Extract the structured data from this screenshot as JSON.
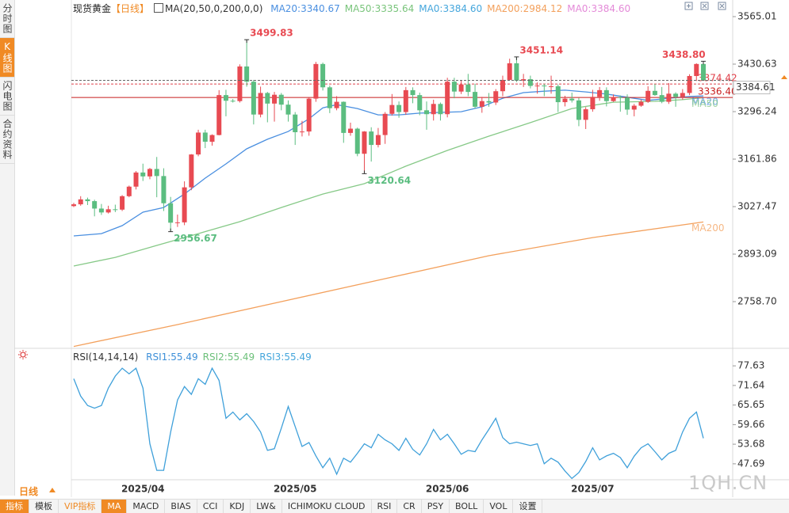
{
  "ui": {
    "sidebar": [
      "分时图",
      "K线图",
      "闪电图",
      "合约资料"
    ],
    "period": "日线",
    "watermark": "1QH.CN",
    "toolbar": [
      "指标",
      "模板",
      "VIP指标",
      "MA",
      "MACD",
      "BIAS",
      "CCI",
      "KDJ",
      "LW&",
      "ICHIMOKU CLOUD",
      "RSI",
      "CR",
      "PSY",
      "BOLL",
      "VOL",
      "设置"
    ]
  },
  "chart_data": [
    {
      "type": "candlestick",
      "title": "现货黄金",
      "period_label": "【日线】",
      "indicator": "MA(20,50,0,200,0,0)",
      "legend": [
        {
          "text": "MA20:3340.67",
          "color": "#4a8fe0"
        },
        {
          "text": "MA50:3335.64",
          "color": "#79c47b"
        },
        {
          "text": "MA0:3384.60",
          "color": "#45a6dc"
        },
        {
          "text": "MA200:2984.12",
          "color": "#f3a05c"
        },
        {
          "text": "MA0:3384.60",
          "color": "#e48ad8"
        }
      ],
      "up_color": "#e84a52",
      "down_color": "#5bbd80",
      "categories": [
        null,
        null,
        null,
        null,
        null,
        null,
        null,
        null,
        null,
        null,
        "2025/04",
        null,
        null,
        null,
        null,
        null,
        null,
        null,
        null,
        null,
        null,
        null,
        null,
        null,
        null,
        null,
        null,
        null,
        null,
        null,
        null,
        null,
        "2025/05",
        null,
        null,
        null,
        null,
        null,
        null,
        null,
        null,
        null,
        null,
        null,
        null,
        null,
        null,
        null,
        null,
        null,
        null,
        null,
        null,
        null,
        "2025/06",
        null,
        null,
        null,
        null,
        null,
        null,
        null,
        null,
        null,
        null,
        null,
        null,
        null,
        null,
        null,
        null,
        null,
        null,
        null,
        null,
        "2025/07",
        null,
        null,
        null,
        null,
        null,
        null,
        null,
        null,
        null,
        null,
        null,
        null,
        null,
        null,
        null,
        null
      ],
      "candles": [
        [
          3029,
          3038,
          3026,
          3034
        ],
        [
          3034,
          3057,
          3030,
          3048
        ],
        [
          3048,
          3053,
          3032,
          3043
        ],
        [
          3043,
          3047,
          3000,
          3022
        ],
        [
          3022,
          3035,
          3004,
          3011
        ],
        [
          3011,
          3030,
          3008,
          3020
        ],
        [
          3020,
          3033,
          3012,
          3019
        ],
        [
          3019,
          3060,
          3015,
          3057
        ],
        [
          3057,
          3087,
          3054,
          3084
        ],
        [
          3084,
          3128,
          3076,
          3124
        ],
        [
          3124,
          3149,
          3100,
          3113
        ],
        [
          3113,
          3137,
          3105,
          3134
        ],
        [
          3134,
          3168,
          3054,
          3114
        ],
        [
          3114,
          3136,
          3015,
          3037
        ],
        [
          3037,
          3055,
          2956.67,
          2982
        ],
        [
          2982,
          3005,
          2970,
          2983
        ],
        [
          2983,
          3099,
          2975,
          3082
        ],
        [
          3082,
          3176,
          3074,
          3175
        ],
        [
          3175,
          3245,
          3170,
          3237
        ],
        [
          3237,
          3245,
          3193,
          3211
        ],
        [
          3211,
          3232,
          3200,
          3230
        ],
        [
          3230,
          3357,
          3229,
          3343
        ],
        [
          3343,
          3358,
          3283,
          3327
        ],
        [
          3327,
          3332,
          3322,
          3326
        ],
        [
          3326,
          3430,
          3322,
          3424
        ],
        [
          3424,
          3499.83,
          3367,
          3381
        ],
        [
          3381,
          3386,
          3260,
          3288
        ],
        [
          3288,
          3367,
          3280,
          3349
        ],
        [
          3349,
          3352,
          3266,
          3319
        ],
        [
          3319,
          3352,
          3268,
          3344
        ],
        [
          3344,
          3349,
          3300,
          3316
        ],
        [
          3316,
          3328,
          3268,
          3288
        ],
        [
          3288,
          3295,
          3202,
          3238
        ],
        [
          3238,
          3270,
          3226,
          3240
        ],
        [
          3240,
          3336,
          3228,
          3333
        ],
        [
          3333,
          3437,
          3324,
          3431
        ],
        [
          3431,
          3435,
          3356,
          3365
        ],
        [
          3365,
          3370,
          3292,
          3306
        ],
        [
          3306,
          3340,
          3300,
          3324
        ],
        [
          3324,
          3325,
          3208,
          3236
        ],
        [
          3236,
          3265,
          3228,
          3248
        ],
        [
          3248,
          3251,
          3170,
          3177
        ],
        [
          3177,
          3241,
          3120.64,
          3240
        ],
        [
          3240,
          3252,
          3155,
          3202
        ],
        [
          3202,
          3250,
          3195,
          3230
        ],
        [
          3230,
          3295,
          3205,
          3290
        ],
        [
          3290,
          3346,
          3285,
          3315
        ],
        [
          3315,
          3325,
          3279,
          3295
        ],
        [
          3295,
          3366,
          3287,
          3357
        ],
        [
          3357,
          3365,
          3320,
          3343
        ],
        [
          3343,
          3350,
          3286,
          3300
        ],
        [
          3300,
          3325,
          3245,
          3289
        ],
        [
          3289,
          3330,
          3271,
          3318
        ],
        [
          3318,
          3322,
          3271,
          3289
        ],
        [
          3289,
          3392,
          3280,
          3381
        ],
        [
          3381,
          3392,
          3334,
          3353
        ],
        [
          3353,
          3385,
          3346,
          3373
        ],
        [
          3373,
          3403,
          3340,
          3352
        ],
        [
          3352,
          3375,
          3305,
          3310
        ],
        [
          3310,
          3338,
          3293,
          3326
        ],
        [
          3326,
          3349,
          3310,
          3322
        ],
        [
          3322,
          3360,
          3315,
          3354
        ],
        [
          3354,
          3398,
          3340,
          3386
        ],
        [
          3386,
          3446,
          3385,
          3433
        ],
        [
          3433,
          3451.14,
          3380,
          3384
        ],
        [
          3384,
          3403,
          3366,
          3388
        ],
        [
          3388,
          3398,
          3362,
          3369
        ],
        [
          3369,
          3379,
          3347,
          3370
        ],
        [
          3370,
          3375,
          3340,
          3368
        ],
        [
          3368,
          3398,
          3347,
          3368
        ],
        [
          3368,
          3373,
          3295,
          3323
        ],
        [
          3323,
          3341,
          3311,
          3333
        ],
        [
          3333,
          3350,
          3322,
          3328
        ],
        [
          3328,
          3335,
          3255,
          3273
        ],
        [
          3273,
          3309,
          3247,
          3303
        ],
        [
          3303,
          3358,
          3296,
          3338
        ],
        [
          3338,
          3366,
          3327,
          3357
        ],
        [
          3357,
          3365,
          3311,
          3326
        ],
        [
          3326,
          3345,
          3324,
          3337
        ],
        [
          3337,
          3342,
          3296,
          3336
        ],
        [
          3336,
          3345,
          3287,
          3302
        ],
        [
          3302,
          3318,
          3283,
          3313
        ],
        [
          3313,
          3330,
          3310,
          3324
        ],
        [
          3324,
          3368,
          3321,
          3355
        ],
        [
          3355,
          3374,
          3341,
          3343
        ],
        [
          3343,
          3366,
          3320,
          3324
        ],
        [
          3324,
          3377,
          3318,
          3347
        ],
        [
          3347,
          3351,
          3310,
          3338
        ],
        [
          3338,
          3360,
          3330,
          3349
        ],
        [
          3349,
          3402,
          3343,
          3397
        ],
        [
          3397,
          3433,
          3383,
          3431
        ],
        [
          3431,
          3438.8,
          3383,
          3384.61
        ]
      ],
      "annotations": [
        {
          "index": 25,
          "field": "high",
          "label": "3499.83"
        },
        {
          "index": 14,
          "field": "low",
          "label": "2956.67"
        },
        {
          "index": 42,
          "field": "low",
          "label": "3120.64"
        },
        {
          "index": 64,
          "field": "high",
          "label": "3451.14"
        },
        {
          "index": 91,
          "field": "high",
          "label": "3438.80"
        }
      ],
      "series": [
        {
          "name": "MA20",
          "color": "#4a8fe0",
          "x": [
            0,
            4,
            7,
            10,
            13,
            16,
            19,
            22,
            25,
            28,
            31,
            34,
            36,
            38,
            41,
            44,
            47,
            50,
            53,
            56,
            59,
            62,
            65,
            68,
            71,
            74,
            77,
            80,
            83,
            86,
            89,
            91
          ],
          "values": [
            2944.6,
            2951,
            2973.7,
            3011.8,
            3025,
            3063,
            3108,
            3148.4,
            3191,
            3218,
            3240,
            3276,
            3307,
            3316,
            3305,
            3287,
            3287,
            3292,
            3294,
            3296,
            3310,
            3334,
            3350,
            3354,
            3357,
            3352,
            3346,
            3337,
            3328,
            3334,
            3339,
            3340.67
          ]
        },
        {
          "name": "MA50",
          "color": "#86c987",
          "x": [
            0,
            6,
            12,
            18,
            24,
            30,
            36,
            42,
            48,
            54,
            60,
            66,
            72,
            78,
            84,
            88,
            91
          ],
          "values": [
            2859.5,
            2884,
            2917.7,
            2951,
            2985,
            3025,
            3063,
            3092.4,
            3142,
            3186.5,
            3226.8,
            3265,
            3305,
            3323,
            3325.4,
            3330,
            3335.64
          ]
        },
        {
          "name": "MA200",
          "color": "#f3a05c",
          "x": [
            0,
            15,
            30,
            45,
            60,
            75,
            91
          ],
          "values": [
            2632,
            2693.7,
            2758.7,
            2823.6,
            2888.6,
            2940,
            2984.12
          ]
        }
      ],
      "hlines": [
        {
          "value": 3374.42,
          "color": "#e0404a",
          "dash": true
        },
        {
          "value": 3336.4,
          "label": "3336.40",
          "color": "#c81e1e",
          "dash": false
        }
      ],
      "ylim": [
        2626.55,
        3580.69
      ],
      "yticks": [
        3565.01,
        3430.63,
        3296.24,
        3161.86,
        3027.47,
        2893.09,
        {
          "value": 2758.7,
          "label": "2758.70"
        }
      ]
    },
    {
      "type": "line",
      "title": "RSI(14,14,14)",
      "legend": [
        {
          "text": "RSI1:55.49",
          "color": "#3d8fd8"
        },
        {
          "text": "RSI2:55.49",
          "color": "#6cc07a"
        },
        {
          "text": "RSI3:55.49",
          "color": "#45a6dc"
        }
      ],
      "series": [
        {
          "color": "#3fa0da",
          "values": [
            73.7,
            68.4,
            65.5,
            64.7,
            65.5,
            70.8,
            74.5,
            76.9,
            75.2,
            76.9,
            70.8,
            53.8,
            45.7,
            45.7,
            57.4,
            67.2,
            71.3,
            68.9,
            73.7,
            72.0,
            76.9,
            73.2,
            61.6,
            63.5,
            61.1,
            63.0,
            60.6,
            57.4,
            51.8,
            52.3,
            58.6,
            65.2,
            59.1,
            53.0,
            54.2,
            50.1,
            46.5,
            49.4,
            44.5,
            49.4,
            48.2,
            50.9,
            53.8,
            52.6,
            56.7,
            55.0,
            53.8,
            51.8,
            55.5,
            52.1,
            50.4,
            53.8,
            58.2,
            55.0,
            56.7,
            53.8,
            50.6,
            51.8,
            51.4,
            55.0,
            58.2,
            61.6,
            55.7,
            53.8,
            54.3,
            53.8,
            53.3,
            53.8,
            47.7,
            49.4,
            48.2,
            45.5,
            43.2,
            45.0,
            48.4,
            52.6,
            48.9,
            50.1,
            50.9,
            49.6,
            46.5,
            50.0,
            52.6,
            53.8,
            51.4,
            48.9,
            50.9,
            51.8,
            57.4,
            61.6,
            63.5,
            55.49
          ]
        }
      ],
      "ylim": [
        43.06,
        81.77
      ],
      "yticks": [
        77.63,
        71.64,
        65.65,
        59.66,
        53.68,
        47.69
      ]
    }
  ]
}
